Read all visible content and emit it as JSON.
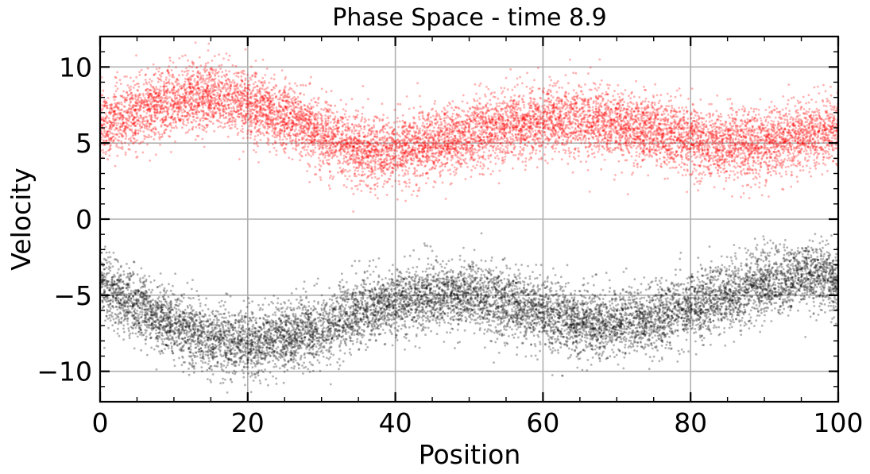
{
  "chart_data": {
    "type": "scatter",
    "title": "Phase Space - time 8.9",
    "xlabel": "Position",
    "ylabel": "Velocity",
    "xlim": [
      0,
      100
    ],
    "ylim": [
      -12,
      12
    ],
    "grid": true,
    "xticks": [
      0,
      20,
      40,
      60,
      80,
      100
    ],
    "xtick_labels": [
      "0",
      "20",
      "40",
      "60",
      "80",
      "100"
    ],
    "yticks": [
      10,
      5,
      0,
      -5,
      -10
    ],
    "ytick_labels": [
      "10",
      "5",
      "0",
      "−5",
      "−10"
    ],
    "series": [
      {
        "color": "#ff0000",
        "marker_alpha": 0.3,
        "point_count": 10000,
        "trend_x": [
          0,
          5,
          10,
          15,
          20,
          25,
          30,
          35,
          40,
          45,
          50,
          55,
          60,
          65,
          70,
          75,
          80,
          85,
          90,
          95,
          100
        ],
        "trend_y": [
          6.2,
          7.0,
          7.8,
          8.1,
          7.6,
          6.7,
          5.6,
          4.6,
          4.5,
          5.0,
          5.6,
          6.1,
          6.5,
          6.5,
          6.2,
          5.8,
          5.1,
          4.8,
          5.0,
          5.4,
          6.0
        ],
        "spread": 1.1
      },
      {
        "color": "#000000",
        "marker_alpha": 0.3,
        "point_count": 10000,
        "trend_x": [
          0,
          5,
          10,
          15,
          20,
          25,
          30,
          35,
          40,
          45,
          50,
          55,
          60,
          65,
          70,
          75,
          80,
          85,
          90,
          95,
          100
        ],
        "trend_y": [
          -4.3,
          -5.8,
          -7.0,
          -7.8,
          -8.2,
          -7.8,
          -7.2,
          -6.2,
          -5.5,
          -5.0,
          -5.0,
          -5.5,
          -6.2,
          -6.8,
          -6.9,
          -6.5,
          -5.8,
          -5.0,
          -4.2,
          -3.7,
          -4.0
        ],
        "spread": 1.1
      }
    ]
  }
}
